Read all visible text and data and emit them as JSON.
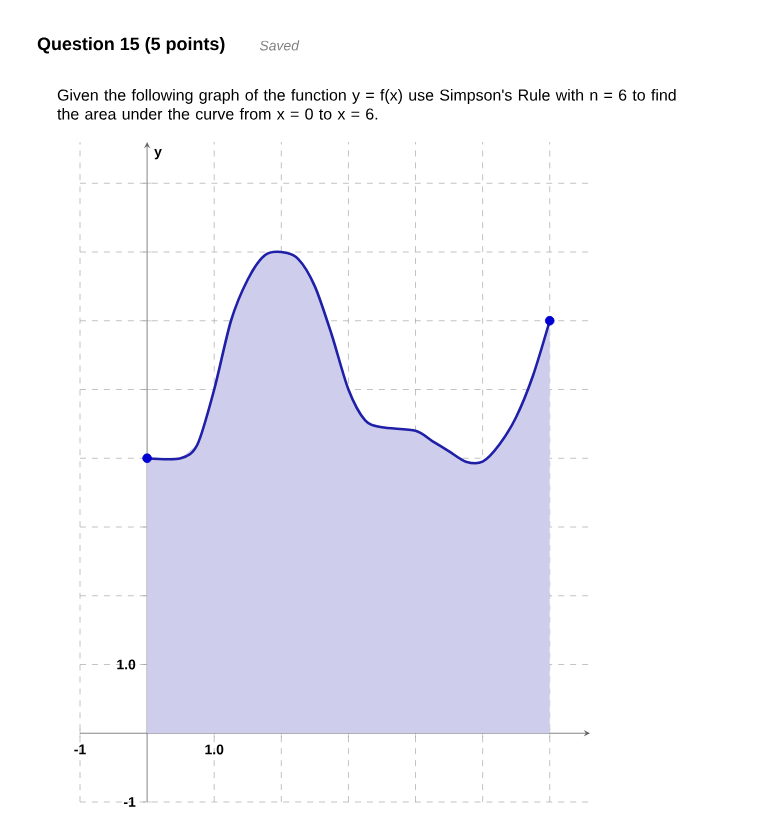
{
  "chart_data": {
    "type": "area",
    "title": "Question 15 (5 points)",
    "annotations": [
      "Saved",
      "Given the following graph of the function y = f(x) use Simpson's Rule with n = 6 to find the area under the curve from x = 0 to x = 6."
    ],
    "ylabel": "y",
    "xlim": [
      -1,
      6.6
    ],
    "ylim": [
      -1,
      8.6
    ],
    "xticks": [
      {
        "value": -1,
        "label": "-1"
      },
      {
        "value": 1,
        "label": "1.0"
      },
      {
        "value": 2,
        "label": null
      },
      {
        "value": 3,
        "label": null
      },
      {
        "value": 4,
        "label": null
      },
      {
        "value": 5,
        "label": null
      },
      {
        "value": 6,
        "label": null
      }
    ],
    "yticks": [
      {
        "value": -1,
        "label": "-1"
      },
      {
        "value": 1,
        "label": "1.0"
      },
      {
        "value": 2,
        "label": null
      },
      {
        "value": 3,
        "label": null
      },
      {
        "value": 4,
        "label": null
      },
      {
        "value": 5,
        "label": null
      },
      {
        "value": 6,
        "label": null
      },
      {
        "value": 7,
        "label": null
      },
      {
        "value": 8,
        "label": null
      }
    ],
    "grid": true,
    "series": [
      {
        "color": "#1f1fa8",
        "x": [
          0,
          0.5,
          0.75,
          1,
          1.25,
          1.5,
          1.75,
          2,
          2.25,
          2.5,
          2.75,
          3,
          3.25,
          3.5,
          4,
          4.25,
          4.5,
          4.75,
          5,
          5.25,
          5.5,
          5.75,
          6
        ],
        "values": [
          4,
          4,
          4.2,
          5,
          6,
          6.6,
          6.95,
          7,
          6.9,
          6.5,
          5.8,
          5,
          4.55,
          4.45,
          4.4,
          4.25,
          4.1,
          3.95,
          3.95,
          4.2,
          4.6,
          5.2,
          6
        ]
      },
      {
        "type": "scatter",
        "color": "#0000d0",
        "x": [
          0,
          6
        ],
        "values": [
          4,
          6
        ]
      }
    ]
  }
}
